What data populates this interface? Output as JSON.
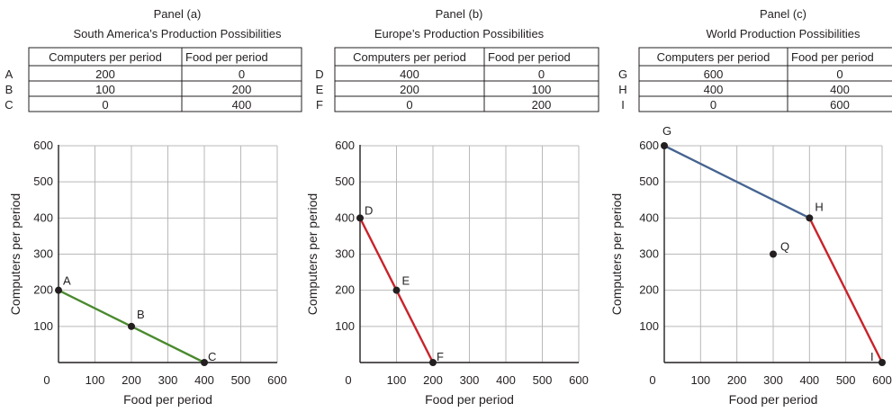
{
  "chart_data": [
    {
      "type": "line",
      "panel_label": "Panel (a)",
      "title": "South America’s Production Possibilities",
      "table": {
        "columns": [
          "Computers per period",
          "Food per period"
        ],
        "rows": [
          {
            "label": "A",
            "computers": "200",
            "food": "0"
          },
          {
            "label": "B",
            "computers": "100",
            "food": "200"
          },
          {
            "label": "C",
            "computers": "0",
            "food": "400"
          }
        ]
      },
      "xlabel": "Food per period",
      "ylabel": "Computers per period",
      "xlim": [
        0,
        600
      ],
      "ylim": [
        0,
        600
      ],
      "x_ticks": [
        "0",
        "100",
        "200",
        "300",
        "400",
        "500",
        "600"
      ],
      "y_ticks": [
        "100",
        "200",
        "300",
        "400",
        "500",
        "600"
      ],
      "grid": true,
      "segments": [
        {
          "color": "#4a8a2f",
          "points": [
            {
              "x": 0,
              "y": 200
            },
            {
              "x": 200,
              "y": 100
            },
            {
              "x": 400,
              "y": 0
            }
          ]
        }
      ],
      "points": [
        {
          "label": "A",
          "x": 0,
          "y": 200
        },
        {
          "label": "B",
          "x": 200,
          "y": 100
        },
        {
          "label": "C",
          "x": 400,
          "y": 0
        }
      ]
    },
    {
      "type": "line",
      "panel_label": "Panel (b)",
      "title": "Europe’s Production Possibilities",
      "table": {
        "columns": [
          "Computers per period",
          "Food per period"
        ],
        "rows": [
          {
            "label": "D",
            "computers": "400",
            "food": "0"
          },
          {
            "label": "E",
            "computers": "200",
            "food": "100"
          },
          {
            "label": "F",
            "computers": "0",
            "food": "200"
          }
        ]
      },
      "xlabel": "Food per period",
      "ylabel": "Computers per period",
      "xlim": [
        0,
        600
      ],
      "ylim": [
        0,
        600
      ],
      "x_ticks": [
        "0",
        "100",
        "200",
        "300",
        "400",
        "500",
        "600"
      ],
      "y_ticks": [
        "100",
        "200",
        "300",
        "400",
        "500",
        "600"
      ],
      "grid": true,
      "segments": [
        {
          "color": "#c8232a",
          "points": [
            {
              "x": 0,
              "y": 400
            },
            {
              "x": 100,
              "y": 200
            },
            {
              "x": 200,
              "y": 0
            }
          ]
        }
      ],
      "points": [
        {
          "label": "D",
          "x": 0,
          "y": 400
        },
        {
          "label": "E",
          "x": 100,
          "y": 200
        },
        {
          "label": "F",
          "x": 200,
          "y": 0
        }
      ]
    },
    {
      "type": "line",
      "panel_label": "Panel (c)",
      "title": "World Production Possibilities",
      "table": {
        "columns": [
          "Computers per period",
          "Food per period"
        ],
        "rows": [
          {
            "label": "G",
            "computers": "600",
            "food": "0"
          },
          {
            "label": "H",
            "computers": "400",
            "food": "400"
          },
          {
            "label": "I",
            "computers": "0",
            "food": "600"
          }
        ]
      },
      "xlabel": "Food per period",
      "ylabel": "Computers per period",
      "xlim": [
        0,
        600
      ],
      "ylim": [
        0,
        600
      ],
      "x_ticks": [
        "0",
        "100",
        "200",
        "300",
        "400",
        "500",
        "600"
      ],
      "y_ticks": [
        "100",
        "200",
        "300",
        "400",
        "500",
        "600"
      ],
      "grid": true,
      "segments": [
        {
          "color": "#45648f",
          "points": [
            {
              "x": 0,
              "y": 600
            },
            {
              "x": 400,
              "y": 400
            }
          ]
        },
        {
          "color": "#c8232a",
          "points": [
            {
              "x": 400,
              "y": 400
            },
            {
              "x": 600,
              "y": 0
            }
          ]
        }
      ],
      "points": [
        {
          "label": "G",
          "x": 0,
          "y": 600
        },
        {
          "label": "H",
          "x": 400,
          "y": 400
        },
        {
          "label": "I",
          "x": 600,
          "y": 0
        },
        {
          "label": "Q",
          "x": 300,
          "y": 300
        }
      ]
    }
  ]
}
